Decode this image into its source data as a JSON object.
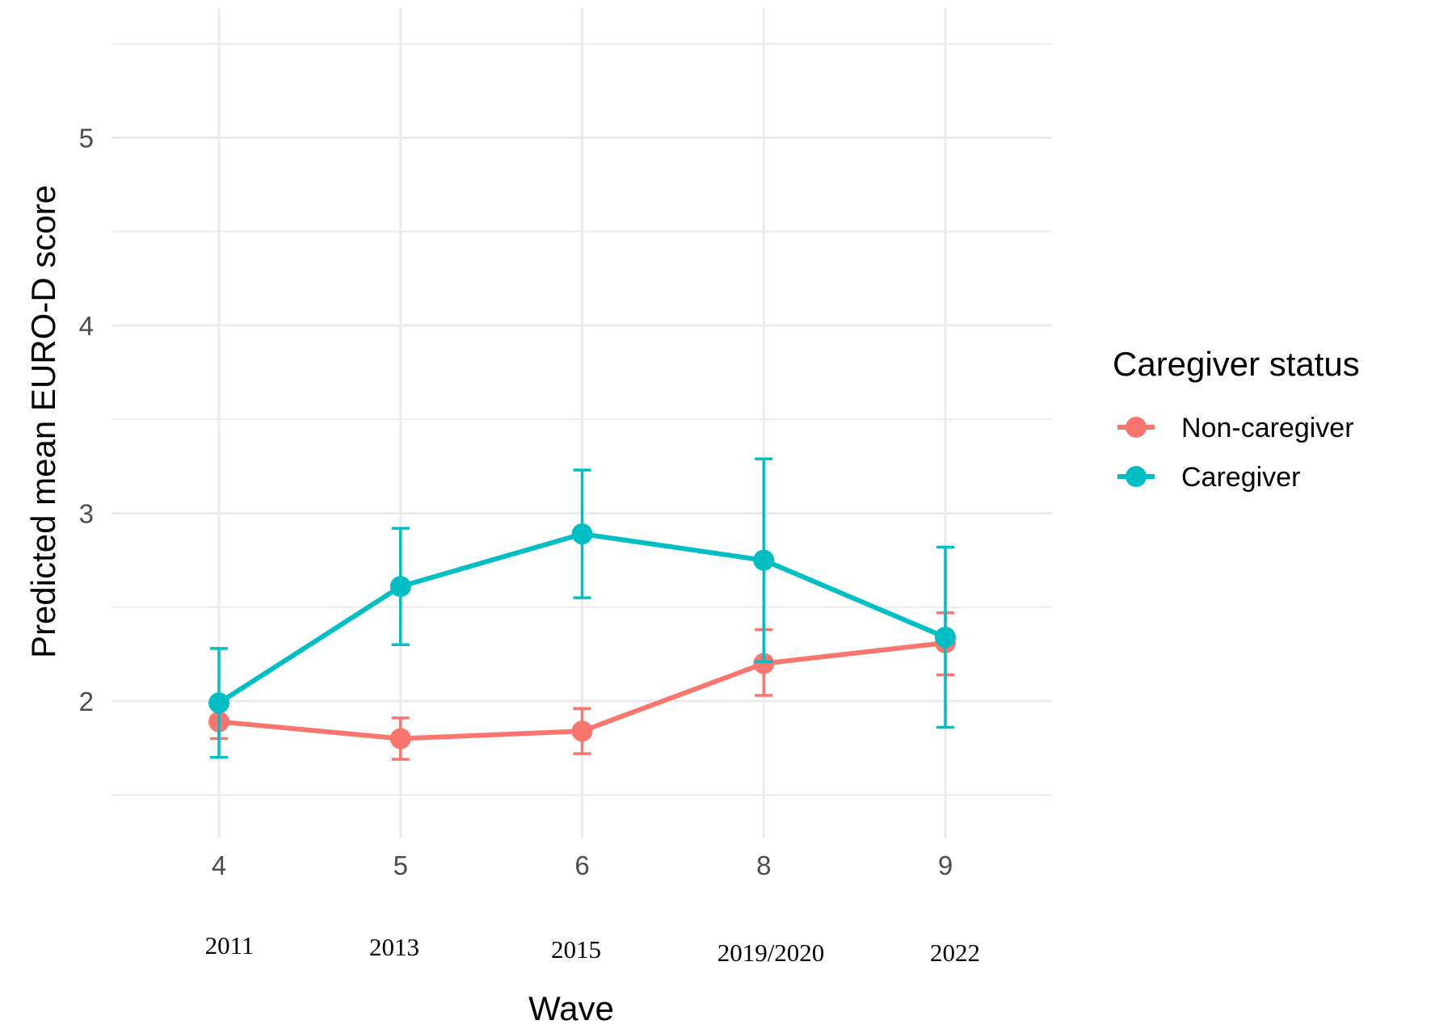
{
  "chart_data": {
    "type": "line",
    "xlabel": "Wave",
    "ylabel": "Predicted mean EURO-D score",
    "categories": [
      "4",
      "5",
      "6",
      "8",
      "9"
    ],
    "year_labels": [
      "2011",
      "2013",
      "2015",
      "2019/2020",
      "2022"
    ],
    "y_ticks": [
      2,
      3,
      4,
      5
    ],
    "ylim": [
      1.35,
      5.7
    ],
    "grid": true,
    "legend": {
      "title": "Caregiver status",
      "position": "right"
    },
    "series": [
      {
        "name": "Non-caregiver",
        "color": "#F8766D",
        "values": [
          1.89,
          1.8,
          1.84,
          2.2,
          2.31
        ],
        "lower": [
          1.8,
          1.69,
          1.72,
          2.03,
          2.14
        ],
        "upper": [
          1.98,
          1.91,
          1.96,
          2.38,
          2.47
        ]
      },
      {
        "name": "Caregiver",
        "color": "#00BFC4",
        "values": [
          1.99,
          2.61,
          2.89,
          2.75,
          2.34
        ],
        "lower": [
          1.7,
          2.3,
          2.55,
          2.21,
          1.86
        ],
        "upper": [
          2.28,
          2.92,
          3.23,
          3.29,
          2.82
        ]
      }
    ]
  }
}
